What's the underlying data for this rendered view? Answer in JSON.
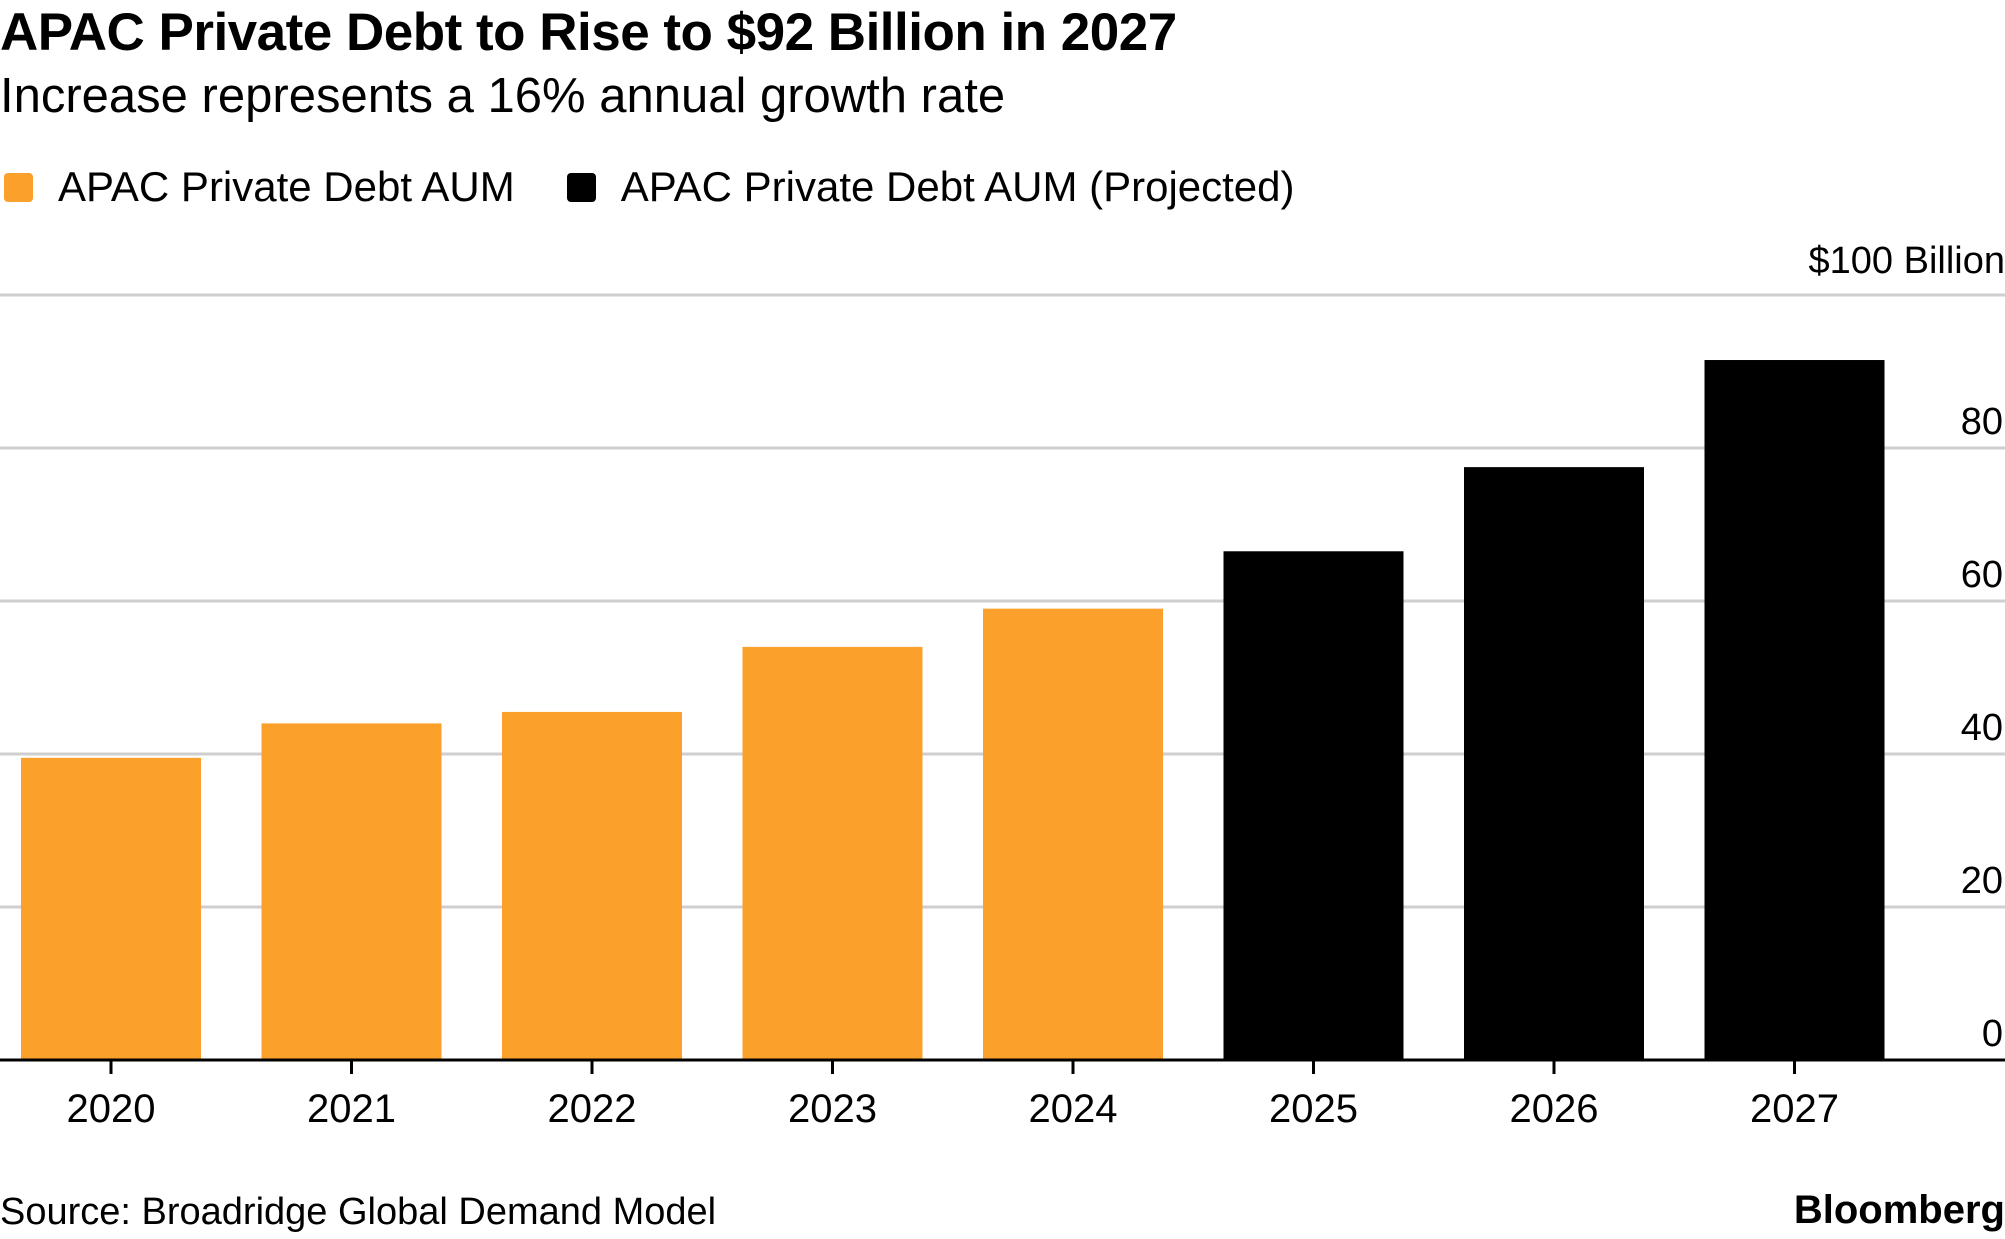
{
  "chart_data": {
    "type": "bar",
    "title": "APAC Private Debt to Rise to $92 Billion in 2027",
    "subtitle": "Increase represents a 16% annual growth rate",
    "categories": [
      "2020",
      "2021",
      "2022",
      "2023",
      "2024",
      "2025",
      "2026",
      "2027"
    ],
    "series": [
      {
        "name": "APAC Private Debt AUM",
        "color": "#FBA12B",
        "values": [
          39.5,
          44,
          45.5,
          54,
          59,
          null,
          null,
          null
        ]
      },
      {
        "name": "APAC Private Debt AUM (Projected)",
        "color": "#000000",
        "values": [
          null,
          null,
          null,
          null,
          null,
          66.5,
          77.5,
          91.5
        ]
      }
    ],
    "ylim": [
      0,
      100
    ],
    "yticks": [
      0,
      20,
      40,
      60,
      80
    ],
    "ytick_labels": [
      "0",
      "20",
      "40",
      "60",
      "80"
    ],
    "unit_label": "$100 Billion",
    "xlabel": "",
    "ylabel": "",
    "grid": true,
    "legend_position": "top-left"
  },
  "footer": {
    "source": "Source: Broadridge Global Demand Model",
    "brand": "Bloomberg"
  }
}
